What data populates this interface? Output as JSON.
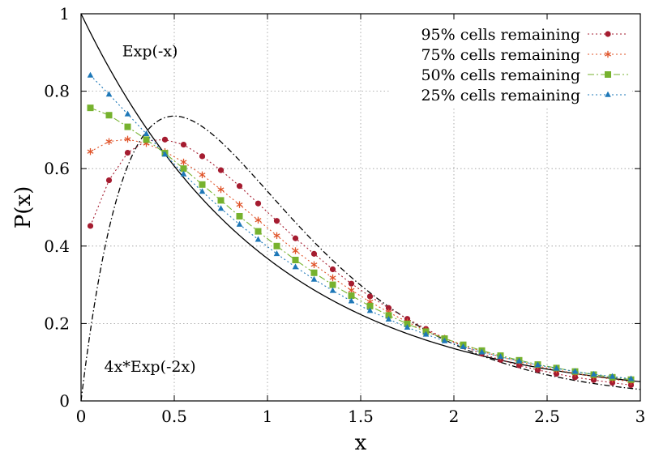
{
  "chart_data": {
    "type": "line",
    "xlabel": "x",
    "ylabel": "P(x)",
    "xlim": [
      0,
      3
    ],
    "ylim": [
      0,
      1
    ],
    "x_ticks": [
      "0",
      "0.5",
      "1",
      "1.5",
      "2",
      "2.5",
      "3"
    ],
    "y_ticks": [
      "0",
      "0.2",
      "0.4",
      "0.6",
      "0.8",
      "1"
    ],
    "grid": true,
    "legend_position": "top-right",
    "annotations": [
      {
        "text": "Exp(-x)",
        "x": 0.37,
        "y": 0.905
      },
      {
        "text": "4x*Exp(-2x)",
        "x": 0.37,
        "y": 0.09
      }
    ],
    "reference_curves": [
      {
        "formula": "exp(-x)",
        "style": "solid",
        "color": "#000000"
      },
      {
        "formula": "4x*exp(-2x)",
        "style": "dash-dot",
        "color": "#000000"
      }
    ],
    "x": [
      0.05,
      0.15,
      0.25,
      0.35,
      0.45,
      0.55,
      0.65,
      0.75,
      0.85,
      0.95,
      1.05,
      1.15,
      1.25,
      1.35,
      1.45,
      1.55,
      1.65,
      1.75,
      1.85,
      1.95,
      2.05,
      2.15,
      2.25,
      2.35,
      2.45,
      2.55,
      2.65,
      2.75,
      2.85,
      2.95
    ],
    "series": [
      {
        "name": "95% cells remaining",
        "color": "#a51c30",
        "marker": "circle",
        "dash": "2,3",
        "values": [
          0.452,
          0.57,
          0.641,
          0.672,
          0.675,
          0.662,
          0.632,
          0.596,
          0.555,
          0.51,
          0.465,
          0.42,
          0.38,
          0.34,
          0.303,
          0.27,
          0.24,
          0.212,
          0.186,
          0.162,
          0.141,
          0.122,
          0.106,
          0.092,
          0.08,
          0.07,
          0.061,
          0.054,
          0.047,
          0.041
        ]
      },
      {
        "name": "75% cells remaining",
        "color": "#e0542a",
        "marker": "star",
        "dash": "2,3",
        "values": [
          0.644,
          0.67,
          0.676,
          0.665,
          0.644,
          0.617,
          0.584,
          0.546,
          0.507,
          0.467,
          0.427,
          0.388,
          0.352,
          0.318,
          0.286,
          0.256,
          0.229,
          0.204,
          0.182,
          0.162,
          0.144,
          0.128,
          0.114,
          0.101,
          0.09,
          0.08,
          0.071,
          0.063,
          0.056,
          0.05
        ]
      },
      {
        "name": "50% cells remaining",
        "color": "#76b22e",
        "marker": "square",
        "dash": "8,3,2,3",
        "values": [
          0.757,
          0.738,
          0.708,
          0.675,
          0.64,
          0.6,
          0.559,
          0.518,
          0.477,
          0.438,
          0.4,
          0.364,
          0.331,
          0.3,
          0.272,
          0.245,
          0.221,
          0.199,
          0.179,
          0.161,
          0.145,
          0.13,
          0.117,
          0.105,
          0.094,
          0.085,
          0.076,
          0.068,
          0.061,
          0.055
        ]
      },
      {
        "name": "25% cells remaining",
        "color": "#1e78b8",
        "marker": "triangle",
        "dash": "2,3",
        "values": [
          0.841,
          0.792,
          0.741,
          0.69,
          0.637,
          0.586,
          0.541,
          0.497,
          0.456,
          0.417,
          0.38,
          0.346,
          0.314,
          0.285,
          0.258,
          0.233,
          0.211,
          0.19,
          0.172,
          0.155,
          0.14,
          0.126,
          0.114,
          0.103,
          0.093,
          0.084,
          0.076,
          0.069,
          0.063,
          0.057
        ]
      }
    ]
  }
}
